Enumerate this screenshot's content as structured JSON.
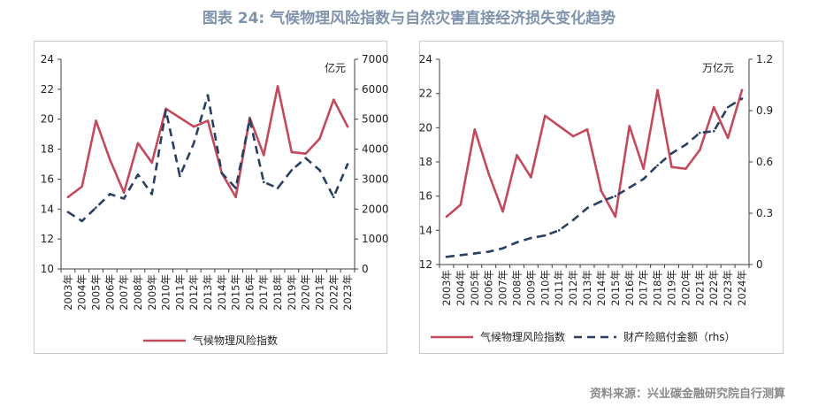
{
  "title": "图表 24: 气候物理风险指数与自然灾害直接经济损失变化趋势",
  "source": "资料来源：兴业碳金融研究院自行测算",
  "colors": {
    "red": "#c3495d",
    "navy": "#2b3f63",
    "axis": "#404040"
  },
  "chart_data": [
    {
      "type": "line",
      "x": [
        "2003年",
        "2004年",
        "2005年",
        "2006年",
        "2007年",
        "2008年",
        "2009年",
        "2010年",
        "2011年",
        "2012年",
        "2013年",
        "2014年",
        "2015年",
        "2016年",
        "2017年",
        "2018年",
        "2019年",
        "2020年",
        "2021年",
        "2022年",
        "2023年"
      ],
      "y_left_ticks": [
        "10",
        "12",
        "14",
        "16",
        "18",
        "20",
        "22",
        "24"
      ],
      "y_right_ticks": [
        "0",
        "1000",
        "2000",
        "3000",
        "4000",
        "5000",
        "6000",
        "7000"
      ],
      "ylim_left": [
        10,
        24
      ],
      "ylim_right": [
        0,
        7000
      ],
      "right_unit": "亿元",
      "legend_position": "bottom",
      "series": [
        {
          "name": "气候物理风险指数",
          "axis": "left",
          "style": "solid",
          "color": "#c3495d",
          "values": [
            14.8,
            15.5,
            19.9,
            17.3,
            15.1,
            18.4,
            17.1,
            20.7,
            20.1,
            19.5,
            19.9,
            16.4,
            14.8,
            20.1,
            17.6,
            22.2,
            17.8,
            17.7,
            18.7,
            21.3,
            19.5
          ]
        },
        {
          "name": "",
          "axis": "right",
          "style": "dashed",
          "color": "#2b3f63",
          "values": [
            1900,
            1600,
            2050,
            2500,
            2350,
            3150,
            2500,
            5300,
            3100,
            4200,
            5800,
            3200,
            2700,
            5000,
            2900,
            2700,
            3300,
            3700,
            3300,
            2400,
            3500
          ]
        }
      ]
    },
    {
      "type": "line",
      "x": [
        "2003年",
        "2004年",
        "2005年",
        "2006年",
        "2007年",
        "2008年",
        "2009年",
        "2010年",
        "2011年",
        "2012年",
        "2013年",
        "2014年",
        "2015年",
        "2016年",
        "2017年",
        "2018年",
        "2019年",
        "2020年",
        "2021年",
        "2022年",
        "2023年",
        "2024年"
      ],
      "y_left_ticks": [
        "12",
        "14",
        "16",
        "18",
        "20",
        "22",
        "24"
      ],
      "y_right_ticks": [
        "0",
        "0.3",
        "0.6",
        "0.9",
        "1.2"
      ],
      "ylim_left": [
        12,
        24
      ],
      "ylim_right": [
        0,
        1.2
      ],
      "right_unit": "万亿元",
      "legend_position": "bottom",
      "series": [
        {
          "name": "气候物理风险指数",
          "axis": "left",
          "style": "solid",
          "color": "#c3495d",
          "values": [
            14.8,
            15.5,
            19.9,
            17.3,
            15.1,
            18.4,
            17.1,
            20.7,
            20.1,
            19.5,
            19.9,
            16.3,
            14.8,
            20.1,
            17.6,
            22.2,
            17.7,
            17.6,
            18.7,
            21.2,
            19.4,
            22.2
          ]
        },
        {
          "name": "财产险赔付金额（rhs）",
          "axis": "right",
          "style": "dashed",
          "color": "#2b3f63",
          "values": [
            0.045,
            0.055,
            0.065,
            0.075,
            0.095,
            0.13,
            0.155,
            0.17,
            0.2,
            0.26,
            0.33,
            0.37,
            0.4,
            0.45,
            0.5,
            0.58,
            0.65,
            0.7,
            0.77,
            0.78,
            0.92,
            0.97
          ]
        }
      ]
    }
  ]
}
